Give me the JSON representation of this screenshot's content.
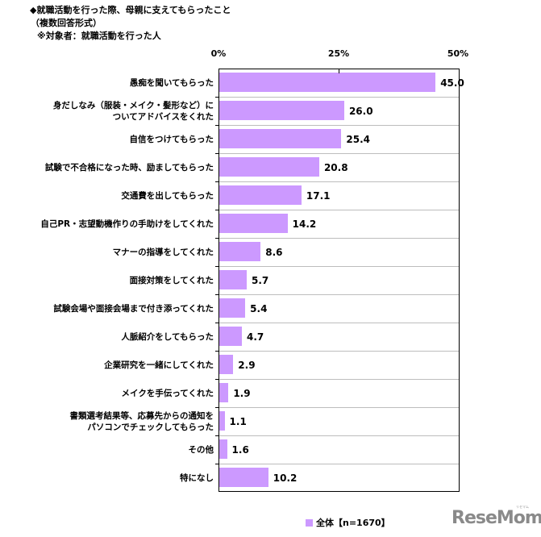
{
  "title": {
    "line1": "◆就職活動を行った際、母親に支えてもらったこと",
    "line2": "（複数回答形式）",
    "line3": "※対象者：就職活動を行った人"
  },
  "axis": {
    "ticks": [
      "0%",
      "25%",
      "50%"
    ]
  },
  "legend": {
    "label": "全体【n=1670】",
    "color": "#cc99ff"
  },
  "logo": {
    "text": "ReseMom",
    "small": "リセマム"
  },
  "chart_data": {
    "type": "bar",
    "orientation": "horizontal",
    "title": "◆就職活動を行った際、母親に支えてもらったこと（複数回答形式）※対象者：就職活動を行った人",
    "xlabel": "",
    "ylabel": "",
    "xlim": [
      0,
      50
    ],
    "x_ticks": [
      "0%",
      "25%",
      "50%"
    ],
    "grid": true,
    "legend_position": "bottom",
    "categories": [
      "愚痴を聞いてもらった",
      "身だしなみ（服装・メイク・髪形など）についてアドバイスをくれた",
      "自信をつけてもらった",
      "試験で不合格になった時、励ましてもらった",
      "交通費を出してもらった",
      "自己PR・志望動機作りの手助けをしてくれた",
      "マナーの指導をしてくれた",
      "面接対策をしてくれた",
      "試験会場や面接会場まで付き添ってくれた",
      "人脈紹介をしてもらった",
      "企業研究を一緒にしてくれた",
      "メイクを手伝ってくれた",
      "書類選考結果等、応募先からの通知をパソコンでチェックしてもらった",
      "その他",
      "特になし"
    ],
    "series": [
      {
        "name": "全体【n=1670】",
        "color": "#cc99ff",
        "values": [
          45.0,
          26.0,
          25.4,
          20.8,
          17.1,
          14.2,
          8.6,
          5.7,
          5.4,
          4.7,
          2.9,
          1.9,
          1.1,
          1.6,
          10.2
        ]
      }
    ]
  },
  "rows": [
    {
      "label1": "愚痴を聞いてもらった",
      "label2": "",
      "value": "45.0"
    },
    {
      "label1": "身だしなみ（服装・メイク・髪形など）に",
      "label2": "ついてアドバイスをくれた",
      "value": "26.0"
    },
    {
      "label1": "自信をつけてもらった",
      "label2": "",
      "value": "25.4"
    },
    {
      "label1": "試験で不合格になった時、励ましてもらった",
      "label2": "",
      "value": "20.8"
    },
    {
      "label1": "交通費を出してもらった",
      "label2": "",
      "value": "17.1"
    },
    {
      "label1": "自己PR・志望動機作りの手助けをしてくれた",
      "label2": "",
      "value": "14.2"
    },
    {
      "label1": "マナーの指導をしてくれた",
      "label2": "",
      "value": "8.6"
    },
    {
      "label1": "面接対策をしてくれた",
      "label2": "",
      "value": "5.7"
    },
    {
      "label1": "試験会場や面接会場まで付き添ってくれた",
      "label2": "",
      "value": "5.4"
    },
    {
      "label1": "人脈紹介をしてもらった",
      "label2": "",
      "value": "4.7"
    },
    {
      "label1": "企業研究を一緒にしてくれた",
      "label2": "",
      "value": "2.9"
    },
    {
      "label1": "メイクを手伝ってくれた",
      "label2": "",
      "value": "1.9"
    },
    {
      "label1": "書類選考結果等、応募先からの通知を",
      "label2": "パソコンでチェックしてもらった",
      "value": "1.1"
    },
    {
      "label1": "その他",
      "label2": "",
      "value": "1.6"
    },
    {
      "label1": "特になし",
      "label2": "",
      "value": "10.2"
    }
  ]
}
